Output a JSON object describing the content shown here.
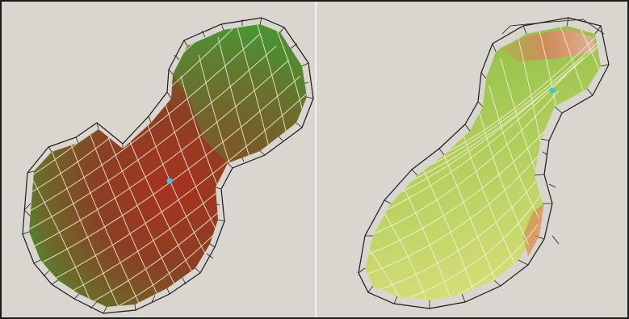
{
  "figure": {
    "background_color": "#d9d6cf",
    "panels": [
      {
        "id": "left",
        "object": "textured-surface-with-wireframe-mesh",
        "surface_gradient": [
          "#b8402a",
          "#8a3a22",
          "#3f9a35"
        ],
        "wire_color_inner": "#f4f1d8",
        "wire_color_outer": "#1a1a1a",
        "marker_color": "#36c6e6"
      },
      {
        "id": "right",
        "object": "textured-surface-with-wireframe-mesh",
        "surface_gradient": [
          "#d8e078",
          "#9cc250",
          "#e08a50"
        ],
        "wire_color_inner": "#f6f4dc",
        "wire_color_outer": "#1a1a1a",
        "marker_color": "#36c6e6"
      }
    ]
  }
}
